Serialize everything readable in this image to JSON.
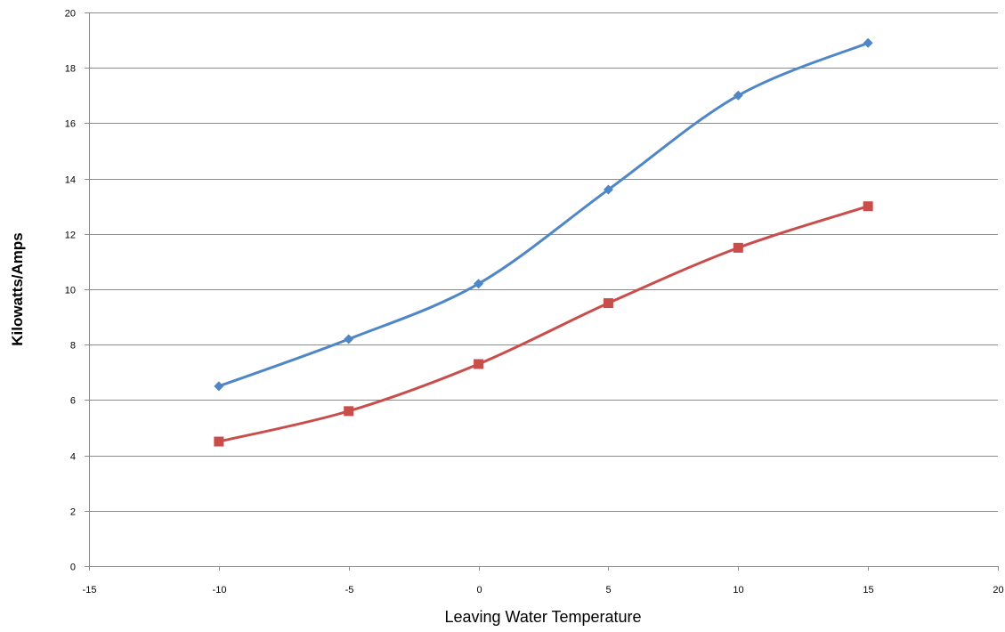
{
  "chart_data": {
    "type": "line",
    "title": "",
    "xlabel": "Leaving Water Temperature",
    "ylabel": "Kilowatts/Amps",
    "xlim": [
      -15,
      20
    ],
    "ylim": [
      0,
      20
    ],
    "xticks": [
      -15,
      -10,
      -5,
      0,
      5,
      10,
      15,
      20
    ],
    "yticks": [
      0,
      2,
      4,
      6,
      8,
      10,
      12,
      14,
      16,
      18,
      20
    ],
    "grid": "horizontal",
    "legend": "none",
    "smooth": true,
    "series": [
      {
        "color": "#4f86c6",
        "marker": "diamond",
        "x": [
          -10,
          -5,
          0,
          5,
          10,
          15
        ],
        "y": [
          6.5,
          8.2,
          10.2,
          13.6,
          17.0,
          18.9
        ]
      },
      {
        "color": "#c94d4a",
        "marker": "square",
        "x": [
          -10,
          -5,
          0,
          5,
          10,
          15
        ],
        "y": [
          4.5,
          5.6,
          7.3,
          9.5,
          11.5,
          13.0
        ]
      }
    ]
  }
}
